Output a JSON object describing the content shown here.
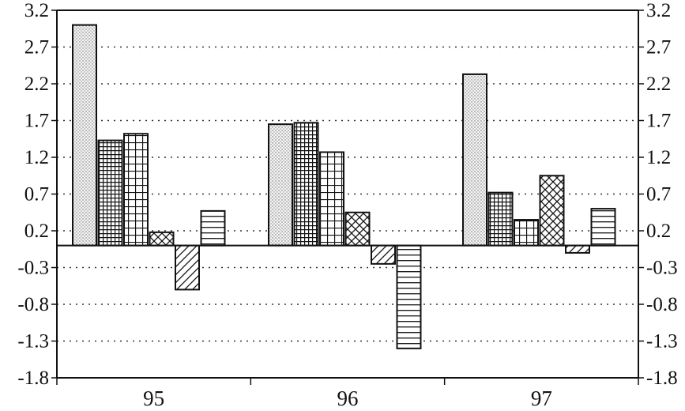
{
  "chart_data": {
    "type": "bar",
    "categories": [
      "95",
      "96",
      "97"
    ],
    "series": [
      {
        "values": [
          3.0,
          1.65,
          2.33
        ],
        "pattern": "dots"
      },
      {
        "values": [
          1.43,
          1.67,
          0.72
        ],
        "pattern": "fine-grid"
      },
      {
        "values": [
          1.52,
          1.27,
          0.35
        ],
        "pattern": "coarse-grid"
      },
      {
        "values": [
          0.18,
          0.45,
          0.95
        ],
        "pattern": "crosshatch"
      },
      {
        "values": [
          -0.6,
          -0.25,
          -0.1
        ],
        "pattern": "diagonal"
      },
      {
        "values": [
          0.47,
          -1.4,
          0.5
        ],
        "pattern": "horizontal"
      }
    ],
    "yticks": [
      "3.2",
      "2.7",
      "2.2",
      "1.7",
      "1.2",
      "0.7",
      "0.2",
      "-0.3",
      "-0.8",
      "-1.3",
      "-1.8"
    ],
    "ytick_values": [
      3.2,
      2.7,
      2.2,
      1.7,
      1.2,
      0.7,
      0.2,
      -0.3,
      -0.8,
      -1.3,
      -1.8
    ],
    "ylim": [
      -1.8,
      3.2
    ],
    "y_axis_both_sides": true,
    "grid": "dotted-horizontal",
    "baseline": 0,
    "colors": {
      "stroke": "#111111",
      "background": "#ffffff"
    }
  }
}
